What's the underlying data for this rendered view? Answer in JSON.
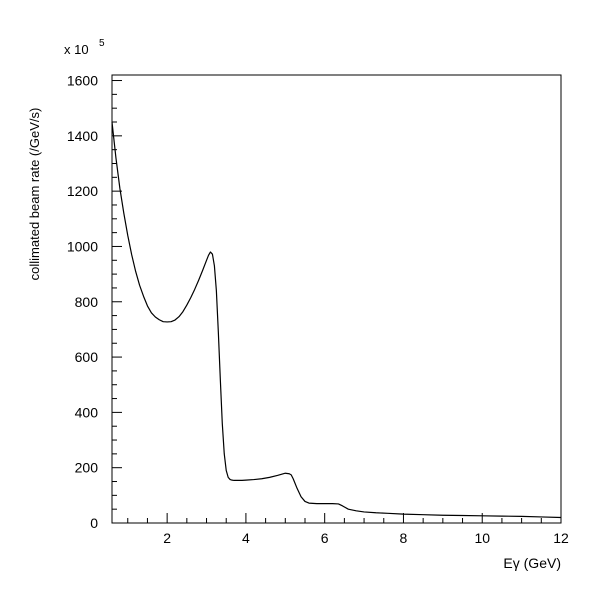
{
  "chart_data": {
    "type": "line",
    "title": "",
    "xlabel": "Eγ (GeV)",
    "ylabel": "collimated beam rate (/GeV/s)",
    "y_multiplier": {
      "base": "x 10",
      "exponent": "5"
    },
    "xlim": [
      0.6,
      12
    ],
    "ylim": [
      0,
      1620
    ],
    "x_major_ticks": [
      2,
      4,
      6,
      8,
      10,
      12
    ],
    "x_minor_step": 0.5,
    "y_major_ticks": [
      0,
      200,
      400,
      600,
      800,
      1000,
      1200,
      1400,
      1600
    ],
    "y_minor_step": 50,
    "grid": false,
    "legend": "none",
    "series": [
      {
        "x": [
          0.6,
          0.7,
          0.8,
          0.9,
          1.0,
          1.1,
          1.2,
          1.3,
          1.4,
          1.5,
          1.6,
          1.7,
          1.8,
          1.9,
          2.0,
          2.1,
          2.2,
          2.3,
          2.4,
          2.5,
          2.6,
          2.7,
          2.8,
          2.9,
          3.0,
          3.05,
          3.1,
          3.15,
          3.2,
          3.25,
          3.3,
          3.35,
          3.4,
          3.45,
          3.5,
          3.55,
          3.6,
          3.65,
          3.7,
          3.75,
          3.8,
          3.9,
          4.0,
          4.2,
          4.4,
          4.6,
          4.8,
          4.9,
          5.0,
          5.1,
          5.15,
          5.2,
          5.3,
          5.4,
          5.5,
          5.6,
          5.8,
          6.0,
          6.2,
          6.35,
          6.45,
          6.6,
          6.8,
          7.0,
          7.3,
          7.6,
          8.0,
          8.5,
          9.0,
          9.5,
          10.0,
          10.5,
          11.0,
          11.5,
          12.0
        ],
        "y": [
          1450,
          1320,
          1210,
          1120,
          1040,
          970,
          910,
          860,
          820,
          785,
          760,
          745,
          735,
          728,
          727,
          728,
          734,
          746,
          764,
          788,
          815,
          845,
          878,
          913,
          950,
          968,
          980,
          972,
          930,
          840,
          690,
          520,
          360,
          250,
          190,
          165,
          157,
          155,
          154,
          154,
          154,
          154,
          155,
          157,
          160,
          165,
          172,
          176,
          180,
          178,
          174,
          160,
          125,
          95,
          78,
          72,
          70,
          70,
          70,
          69,
          62,
          50,
          44,
          40,
          37,
          35,
          32,
          30,
          28,
          27,
          26,
          25,
          24,
          22,
          20
        ]
      }
    ]
  }
}
